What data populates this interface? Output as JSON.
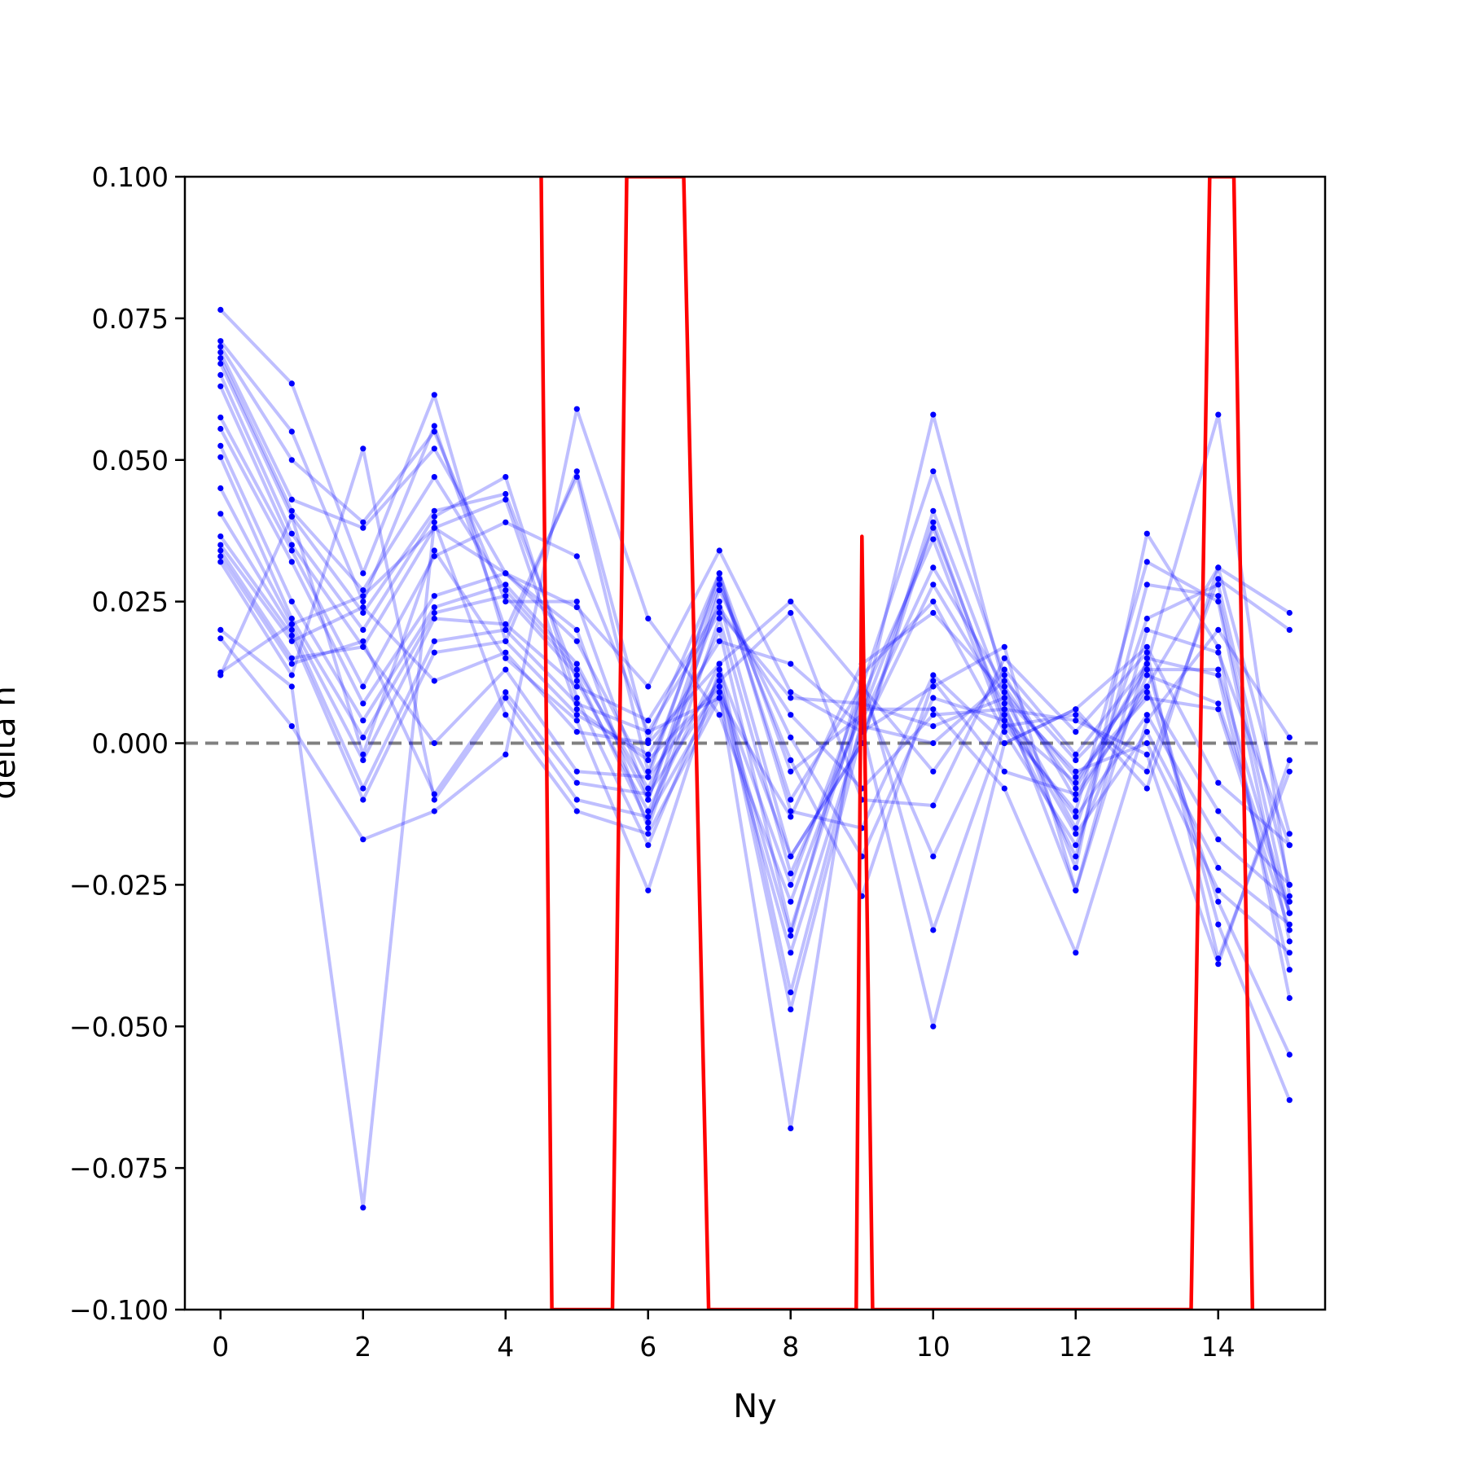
{
  "chart_data": {
    "type": "line",
    "title": "",
    "xlabel": "Ny",
    "ylabel": "delta n",
    "xlim": [
      -0.5,
      15.5
    ],
    "ylim": [
      -0.1,
      0.1
    ],
    "grid": false,
    "x_ticks": [
      0,
      2,
      4,
      6,
      8,
      10,
      12,
      14
    ],
    "x_tick_labels": [
      "0",
      "2",
      "4",
      "6",
      "8",
      "10",
      "12",
      "14"
    ],
    "y_ticks": [
      0.1,
      0.075,
      0.05,
      0.025,
      0.0,
      -0.025,
      -0.05,
      -0.075,
      -0.1
    ],
    "y_tick_labels": [
      "0.100",
      "0.075",
      "0.050",
      "0.025",
      "0.000",
      "−0.025",
      "−0.050",
      "−0.075",
      "−0.100"
    ],
    "reference_line": {
      "y": 0.0,
      "style": "dashed",
      "color": "#808080"
    },
    "colors": {
      "samples": "#0000ff",
      "mean": "#ff0000"
    },
    "x": [
      0,
      1,
      2,
      3,
      4,
      5,
      6,
      7,
      8,
      9,
      10,
      11,
      12,
      13,
      14,
      15
    ],
    "series": [
      {
        "values": [
          0.0765,
          0.0635,
          0.03,
          0.0615,
          0.018,
          0.048,
          0.0005,
          0.03,
          -0.005,
          0.005,
          0.058,
          0.01,
          -0.008,
          0.014,
          0.058,
          -0.027
        ]
      },
      {
        "values": [
          0.071,
          0.055,
          0.025,
          0.056,
          0.02,
          0.047,
          -0.005,
          0.029,
          -0.01,
          0.01,
          0.048,
          0.012,
          -0.01,
          0.01,
          0.031,
          -0.016
        ]
      },
      {
        "values": [
          0.07,
          0.05,
          0.039,
          0.055,
          0.025,
          0.025,
          -0.01,
          0.025,
          -0.02,
          0.0,
          0.041,
          0.008,
          -0.015,
          0.022,
          0.028,
          -0.025
        ]
      },
      {
        "values": [
          0.069,
          0.043,
          0.038,
          0.052,
          0.03,
          0.02,
          -0.015,
          0.022,
          -0.023,
          0.005,
          0.038,
          0.005,
          -0.02,
          0.028,
          0.026,
          -0.03
        ]
      },
      {
        "values": [
          0.068,
          0.041,
          0.027,
          0.047,
          0.027,
          0.013,
          -0.008,
          0.02,
          -0.033,
          0.008,
          0.036,
          0.003,
          -0.012,
          0.032,
          0.025,
          -0.035
        ]
      },
      {
        "values": [
          0.067,
          0.04,
          0.023,
          0.041,
          0.044,
          0.011,
          -0.012,
          0.014,
          -0.044,
          0.004,
          0.031,
          0.01,
          -0.022,
          0.037,
          0.017,
          -0.045
        ]
      },
      {
        "values": [
          0.065,
          0.037,
          0.02,
          0.04,
          0.047,
          0.008,
          -0.018,
          0.012,
          -0.047,
          0.002,
          0.028,
          0.007,
          -0.026,
          0.015,
          0.012,
          -0.04
        ]
      },
      {
        "values": [
          0.063,
          0.035,
          0.017,
          0.038,
          0.043,
          0.006,
          -0.003,
          0.01,
          -0.034,
          0.012,
          0.025,
          0.002,
          -0.018,
          0.012,
          0.007,
          -0.03
        ]
      },
      {
        "values": [
          0.0575,
          0.034,
          0.01,
          0.033,
          0.039,
          0.033,
          0.002,
          0.008,
          -0.013,
          0.014,
          0.023,
          0.009,
          -0.006,
          0.008,
          0.006,
          -0.033
        ]
      },
      {
        "values": [
          0.0555,
          0.032,
          0.007,
          0.026,
          0.03,
          0.018,
          -0.006,
          0.03,
          -0.012,
          -0.015,
          0.012,
          0.0,
          0.006,
          0.017,
          -0.007,
          -0.018
        ]
      },
      {
        "values": [
          0.0525,
          0.025,
          0.004,
          0.024,
          0.028,
          0.014,
          -0.01,
          0.028,
          -0.003,
          -0.027,
          0.011,
          -0.005,
          -0.009,
          0.009,
          -0.012,
          -0.025
        ]
      },
      {
        "values": [
          0.0505,
          0.022,
          0.001,
          0.023,
          0.026,
          0.012,
          -0.014,
          0.027,
          0.001,
          -0.02,
          0.008,
          0.004,
          -0.013,
          0.005,
          -0.017,
          -0.028
        ]
      },
      {
        "values": [
          0.045,
          0.021,
          -0.003,
          0.022,
          0.021,
          0.01,
          0.004,
          0.024,
          0.005,
          -0.008,
          0.005,
          0.006,
          -0.016,
          0.002,
          -0.022,
          -0.032
        ]
      },
      {
        "values": [
          0.0405,
          0.02,
          -0.008,
          0.018,
          0.02,
          0.007,
          0.002,
          0.023,
          0.008,
          0.007,
          0.003,
          0.008,
          -0.005,
          0.0,
          -0.026,
          -0.037
        ]
      },
      {
        "values": [
          0.0365,
          0.019,
          -0.01,
          0.016,
          0.018,
          0.005,
          -0.002,
          0.018,
          0.014,
          0.003,
          0.0,
          0.011,
          -0.003,
          0.01,
          -0.028,
          -0.055
        ]
      },
      {
        "values": [
          0.035,
          0.018,
          0.024,
          0.011,
          0.016,
          0.002,
          0.0,
          0.014,
          0.025,
          0.01,
          -0.005,
          0.013,
          -0.002,
          0.014,
          -0.032,
          -0.063
        ]
      },
      {
        "values": [
          0.034,
          0.015,
          0.017,
          0.0,
          0.013,
          -0.005,
          -0.006,
          0.011,
          0.023,
          -0.01,
          -0.011,
          0.015,
          0.002,
          0.016,
          -0.038,
          -0.005
        ]
      },
      {
        "values": [
          0.033,
          0.014,
          0.018,
          -0.009,
          0.009,
          -0.007,
          -0.009,
          0.01,
          -0.025,
          0.009,
          -0.02,
          0.006,
          0.004,
          -0.002,
          -0.039,
          -0.003
        ]
      },
      {
        "values": [
          0.032,
          0.012,
          0.052,
          -0.01,
          0.008,
          -0.01,
          -0.013,
          0.009,
          -0.068,
          0.012,
          -0.033,
          0.003,
          0.005,
          -0.005,
          0.029,
          0.02
        ]
      },
      {
        "values": [
          0.02,
          0.01,
          -0.082,
          0.039,
          0.005,
          -0.012,
          -0.016,
          0.008,
          -0.037,
          0.003,
          -0.05,
          0.0,
          0.006,
          -0.008,
          0.031,
          0.023
        ]
      },
      {
        "values": [
          0.0185,
          0.003,
          -0.017,
          -0.012,
          -0.002,
          0.059,
          0.022,
          0.005,
          -0.028,
          0.006,
          0.006,
          -0.008,
          -0.037,
          0.004,
          0.02,
          0.001
        ]
      },
      {
        "values": [
          0.0125,
          0.021,
          0.026,
          0.038,
          0.03,
          0.024,
          0.01,
          0.034,
          0.009,
          0.002,
          0.01,
          0.017,
          -0.026,
          0.02,
          0.016,
          -0.018
        ]
      },
      {
        "values": [
          0.012,
          0.04,
          -0.002,
          0.034,
          0.015,
          0.004,
          -0.026,
          0.013,
          -0.02,
          0.0,
          0.039,
          0.004,
          -0.007,
          0.013,
          0.013,
          -0.03
        ]
      }
    ],
    "mean_series": {
      "x": [
        4.5,
        4.65,
        5.5,
        5.7,
        6.5,
        6.85,
        8.92,
        9.0,
        9.15,
        13.62,
        13.88,
        14.22,
        14.48
      ],
      "values": [
        0.1,
        -0.1,
        -0.1,
        0.1,
        0.1,
        -0.1,
        -0.1,
        0.0365,
        -0.1,
        -0.1,
        0.1,
        0.1,
        -0.1
      ]
    }
  }
}
